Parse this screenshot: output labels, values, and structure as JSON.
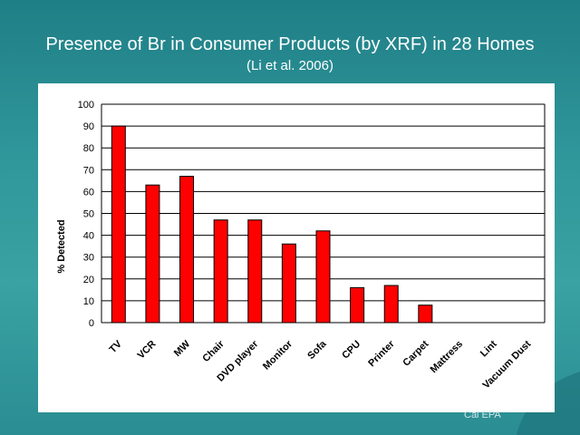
{
  "slide": {
    "title": "Presence of Br in Consumer Products (by XRF) in 28 Homes",
    "subtitle": "(Li et al. 2006)",
    "footer": "Cal EPA"
  },
  "chart_data": {
    "type": "bar",
    "title": "",
    "xlabel": "",
    "ylabel": "% Detected",
    "ylim": [
      0,
      100
    ],
    "yticks": [
      0,
      10,
      20,
      30,
      40,
      50,
      60,
      70,
      80,
      90,
      100
    ],
    "grid": true,
    "bar_color": "#ff0000",
    "categories": [
      "TV",
      "VCR",
      "MW",
      "Chair",
      "DVD player",
      "Monitor",
      "Sofa",
      "CPU",
      "Printer",
      "Carpet",
      "Mattress",
      "Lint",
      "Vacuum Dust"
    ],
    "values": [
      90,
      63,
      67,
      47,
      47,
      36,
      42,
      16,
      17,
      8,
      0,
      0,
      0
    ]
  }
}
